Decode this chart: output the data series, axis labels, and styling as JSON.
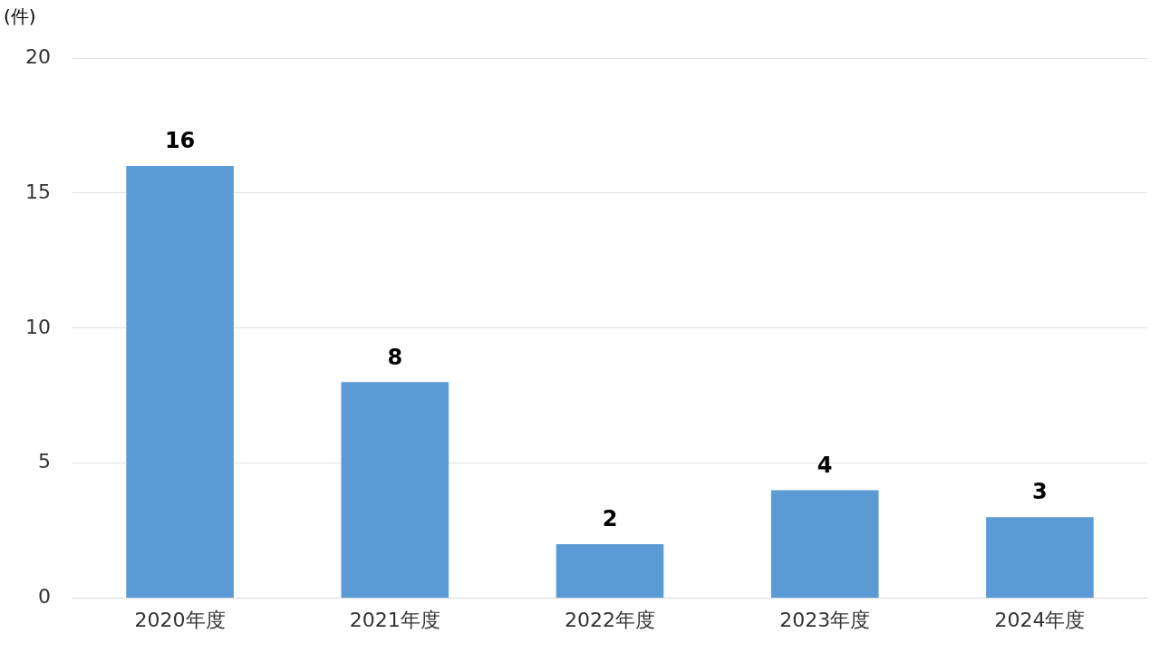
{
  "chart_data": {
    "type": "bar",
    "ylabel": "(件)",
    "categories": [
      "2020年度",
      "2021年度",
      "2022年度",
      "2023年度",
      "2024年度"
    ],
    "values": [
      16,
      8,
      2,
      4,
      3
    ],
    "color": "#5b9bd5",
    "ylim": [
      0,
      20
    ],
    "yticks": [
      0,
      5,
      10,
      15,
      20
    ],
    "grid": "y",
    "data_labels": true,
    "legend": false
  }
}
